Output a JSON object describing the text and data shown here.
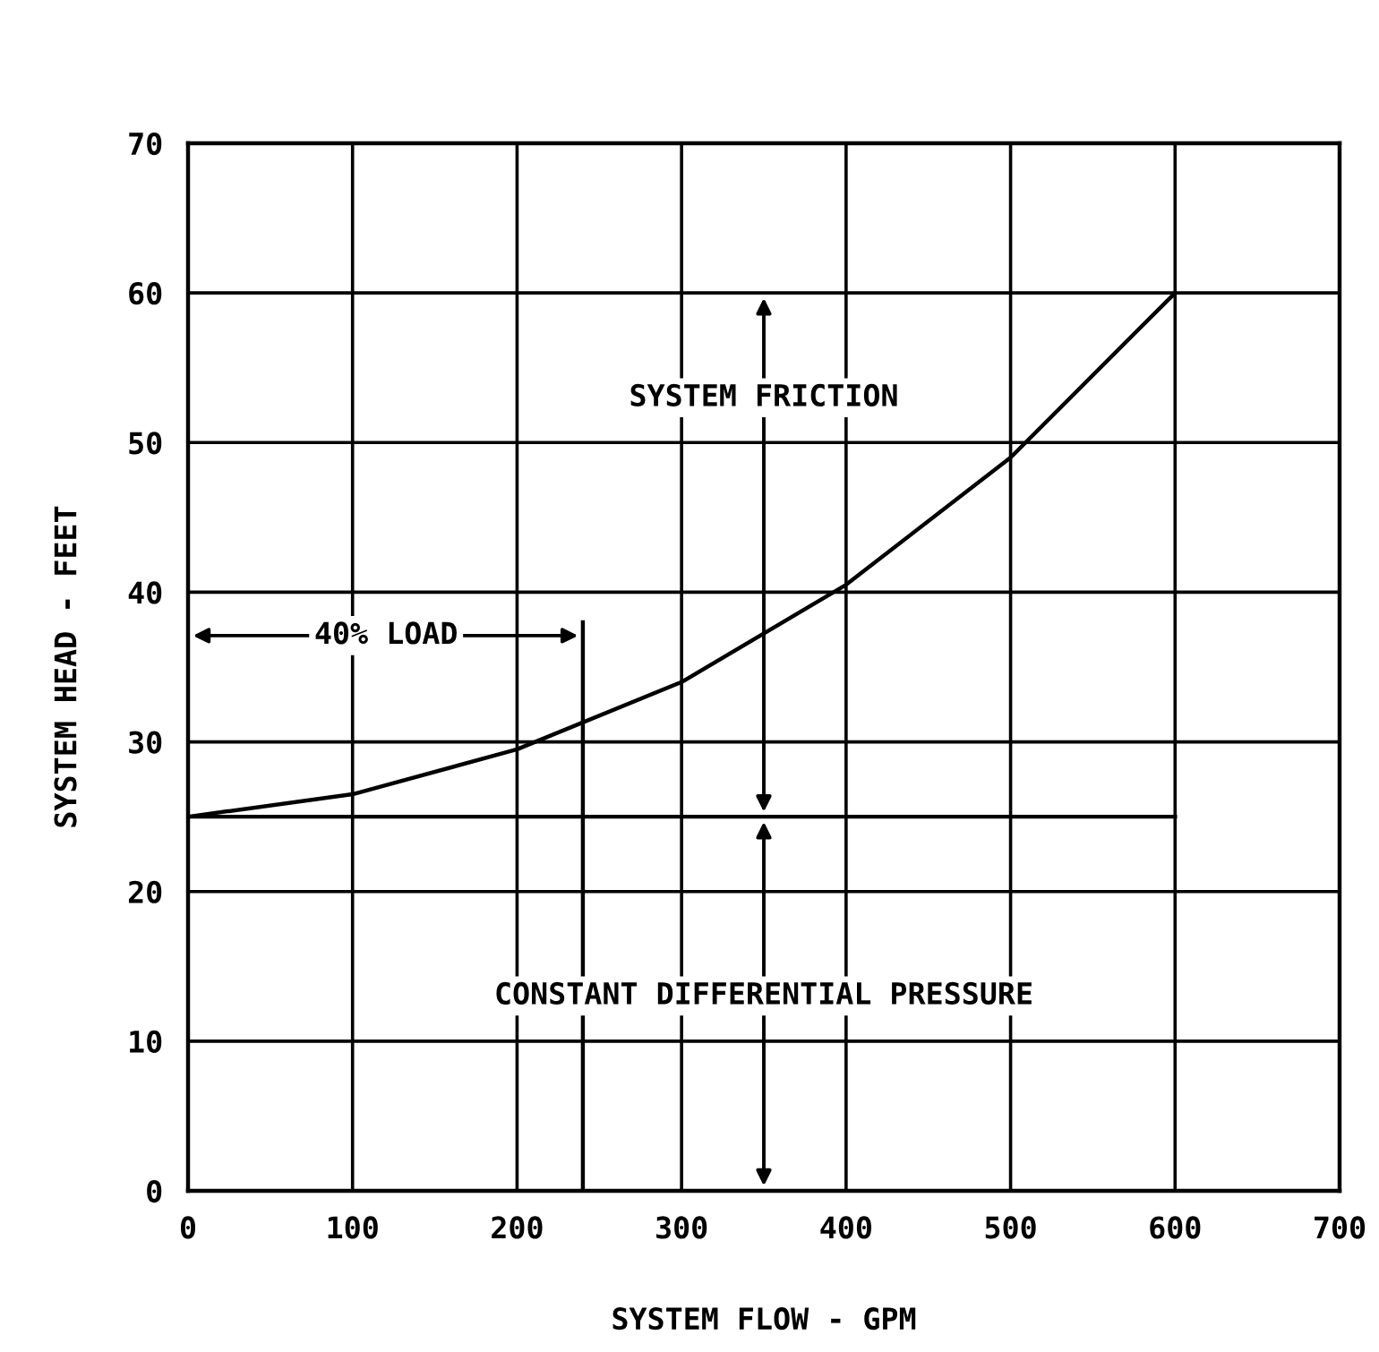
{
  "chart_data": {
    "type": "line",
    "xlabel": "SYSTEM FLOW - GPM",
    "ylabel": "SYSTEM HEAD - FEET",
    "xlim": [
      0,
      700
    ],
    "ylim": [
      0,
      70
    ],
    "xticks": [
      0,
      100,
      200,
      300,
      400,
      500,
      600,
      700
    ],
    "yticks": [
      0,
      10,
      20,
      30,
      40,
      50,
      60,
      70
    ],
    "grid": true,
    "series": [
      {
        "color": "#000000",
        "x": [
          0,
          100,
          200,
          300,
          400,
          500,
          600
        ],
        "values": [
          25,
          26.5,
          29.5,
          34,
          40.5,
          49,
          60
        ]
      },
      {
        "color": "#000000",
        "x": [
          0,
          600
        ],
        "values": [
          25,
          25
        ]
      },
      {
        "color": "#000000",
        "x": [
          240,
          240
        ],
        "values": [
          0,
          38
        ]
      }
    ],
    "annotations": [
      "SYSTEM FRICTION",
      "40% LOAD",
      "CONSTANT DIFFERENTIAL PRESSURE"
    ]
  }
}
